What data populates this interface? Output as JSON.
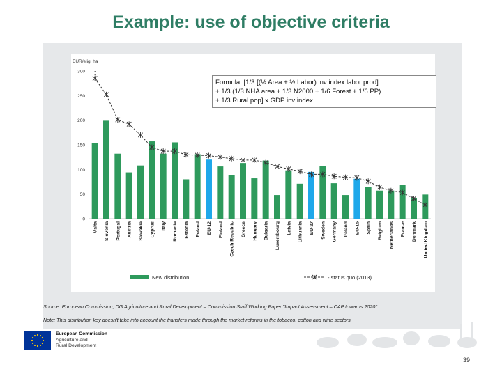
{
  "slide": {
    "title": "Example: use of objective criteria",
    "formula": [
      "Formula: [1/3 [(½ Area + ½ Labor) inv index labor prod]",
      "+ 1/3 (1/3 NHA area + 1/3 N2000 + 1/6 Forest + 1/6 PP)",
      "+ 1/3 Rural pop] x GDP inv index"
    ],
    "source": "Source: European Commission, DG Agriculture and Rural Development – Commission Staff Working Paper \"Impact Assessment – CAP towards 2020\"",
    "note": "Note: This distribution key doesn't take into account the transfers made through the market reforms in the tobacco, cotton and wine sectors",
    "page_number": "39",
    "logo": {
      "name": "European Commission",
      "line2": "Agriculture and",
      "line3": "Rural Development"
    }
  },
  "colors": {
    "title": "#2e7d64",
    "bar": "#2e9a5c",
    "bar_highlight": "#1ea8ea",
    "status_quo": "#333333",
    "panel": "#e6e8ea",
    "eu_blue": "#003399",
    "eu_star": "#ffcc00"
  },
  "chart_data": {
    "type": "bar",
    "ylabel": "EUR/elig. ha",
    "ylim": [
      0,
      300
    ],
    "yticks": [
      0,
      50,
      100,
      150,
      200,
      250,
      300
    ],
    "categories": [
      "Malta",
      "Slovenia",
      "Portugal",
      "Austria",
      "Slovakia",
      "Cyprus",
      "Italy",
      "Romania",
      "Estonia",
      "Poland",
      "EU-12",
      "Finland",
      "Czech Republic",
      "Greece",
      "Hungary",
      "Bulgaria",
      "Luxembourg",
      "Latvia",
      "Lithuania",
      "EU-27",
      "Sweden",
      "Germany",
      "Ireland",
      "EU-15",
      "Spain",
      "Belgium",
      "Netherlands",
      "France",
      "Denmark",
      "United Kingdom"
    ],
    "highlight": [
      "EU-12",
      "EU-27",
      "EU-15"
    ],
    "series": [
      {
        "name": "New distribution",
        "values": [
          153,
          199,
          132,
          94,
          108,
          157,
          132,
          155,
          80,
          131,
          120,
          106,
          88,
          113,
          82,
          118,
          48,
          98,
          71,
          95,
          107,
          72,
          48,
          81,
          65,
          57,
          57,
          68,
          42,
          49
        ]
      },
      {
        "name": "status quo (2013)",
        "values": [
          285,
          252,
          201,
          192,
          170,
          145,
          137,
          137,
          130,
          129,
          128,
          125,
          122,
          119,
          119,
          114,
          106,
          101,
          96,
          90,
          90,
          86,
          84,
          83,
          76,
          64,
          57,
          53,
          41,
          28
        ]
      }
    ],
    "legend_placement": "bottom"
  }
}
